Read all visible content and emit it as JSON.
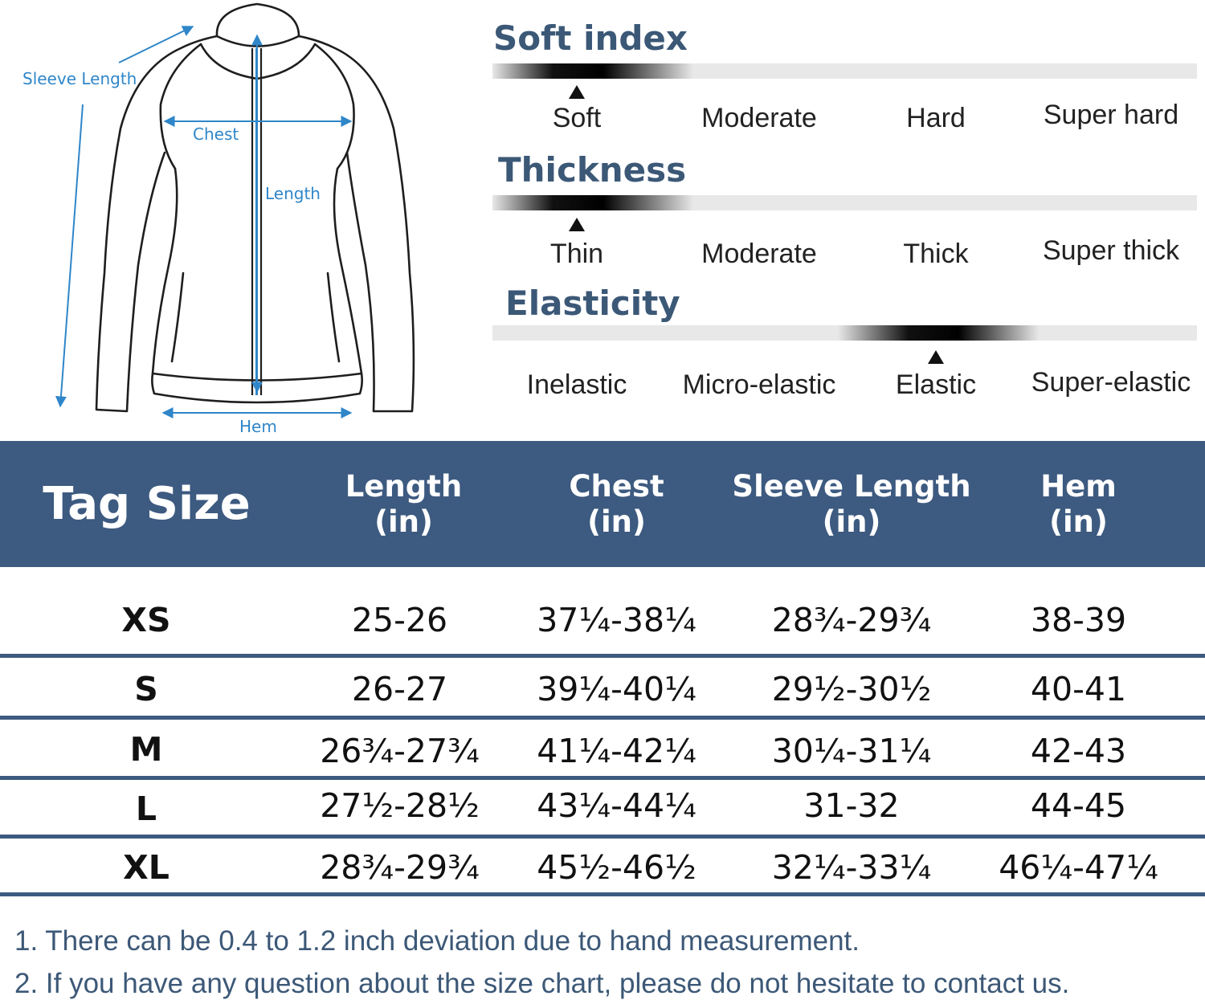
{
  "diagram": {
    "labels": {
      "sleeve_length": "Sleeve Length",
      "chest": "Chest",
      "length": "Length",
      "hem": "Hem"
    },
    "accent_color": "#2f86c9"
  },
  "properties": [
    {
      "title": "Soft index",
      "options": [
        "Soft",
        "Moderate",
        "Hard",
        "Super hard"
      ],
      "selected": 0
    },
    {
      "title": "Thickness",
      "options": [
        "Thin",
        "Moderate",
        "Thick",
        "Super thick"
      ],
      "selected": 0
    },
    {
      "title": "Elasticity",
      "options": [
        "Inelastic",
        "Micro-elastic",
        "Elastic",
        "Super-elastic"
      ],
      "selected": 2
    }
  ],
  "table": {
    "header_color": "#3d5a80",
    "columns": [
      {
        "line1": "Tag Size",
        "line2": ""
      },
      {
        "line1": "Length",
        "line2": "(in)"
      },
      {
        "line1": "Chest",
        "line2": "(in)"
      },
      {
        "line1": "Sleeve Length",
        "line2": "(in)"
      },
      {
        "line1": "Hem",
        "line2": "(in)"
      }
    ],
    "rows": [
      [
        "XS",
        "25-26",
        "37¼-38¼",
        "28¾-29¾",
        "38-39"
      ],
      [
        "S",
        "26-27",
        "39¼-40¼",
        "29½-30½",
        "40-41"
      ],
      [
        "M",
        "26¾-27¾",
        "41¼-42¼",
        "30¼-31¼",
        "42-43"
      ],
      [
        "L",
        "27½-28½",
        "43¼-44¼",
        "31-32",
        "44-45"
      ],
      [
        "XL",
        "28¾-29¾",
        "45½-46½",
        "32¼-33¼",
        "46¼-47¼"
      ]
    ]
  },
  "notes": [
    "1. There can be 0.4 to 1.2 inch deviation due to hand measurement.",
    "2. If you have any question about the size chart, please do not hesitate to contact us."
  ]
}
